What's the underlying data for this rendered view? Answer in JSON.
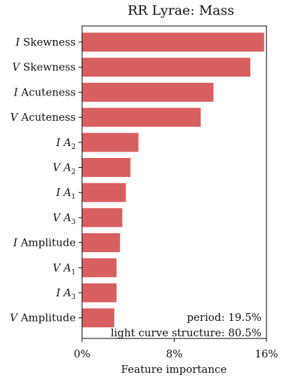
{
  "chart_data": {
    "type": "bar",
    "orientation": "horizontal",
    "title": "RR Lyrae: Mass",
    "xlabel": "Feature importance",
    "ylabel": "",
    "xlim": [
      0,
      16
    ],
    "x_ticks": [
      "0%",
      "8%",
      "16%"
    ],
    "bar_color": "#d85f60",
    "categories": [
      {
        "band": "I",
        "name": "Skewness",
        "sub": ""
      },
      {
        "band": "V",
        "name": "Skewness",
        "sub": ""
      },
      {
        "band": "I",
        "name": "Acuteness",
        "sub": ""
      },
      {
        "band": "V",
        "name": "Acuteness",
        "sub": ""
      },
      {
        "band": "I",
        "name": "A",
        "sub": "2"
      },
      {
        "band": "V",
        "name": "A",
        "sub": "2"
      },
      {
        "band": "I",
        "name": "A",
        "sub": "1"
      },
      {
        "band": "V",
        "name": "A",
        "sub": "3"
      },
      {
        "band": "I",
        "name": "Amplitude",
        "sub": ""
      },
      {
        "band": "V",
        "name": "A",
        "sub": "1"
      },
      {
        "band": "I",
        "name": "A",
        "sub": "3"
      },
      {
        "band": "V",
        "name": "Amplitude",
        "sub": ""
      }
    ],
    "values": [
      15.8,
      14.6,
      11.4,
      10.3,
      4.9,
      4.2,
      3.8,
      3.5,
      3.3,
      3.0,
      3.0,
      2.8
    ],
    "annotations": [
      "period: 19.5%",
      "light curve structure: 80.5%"
    ],
    "grid": false,
    "legend": "none"
  }
}
